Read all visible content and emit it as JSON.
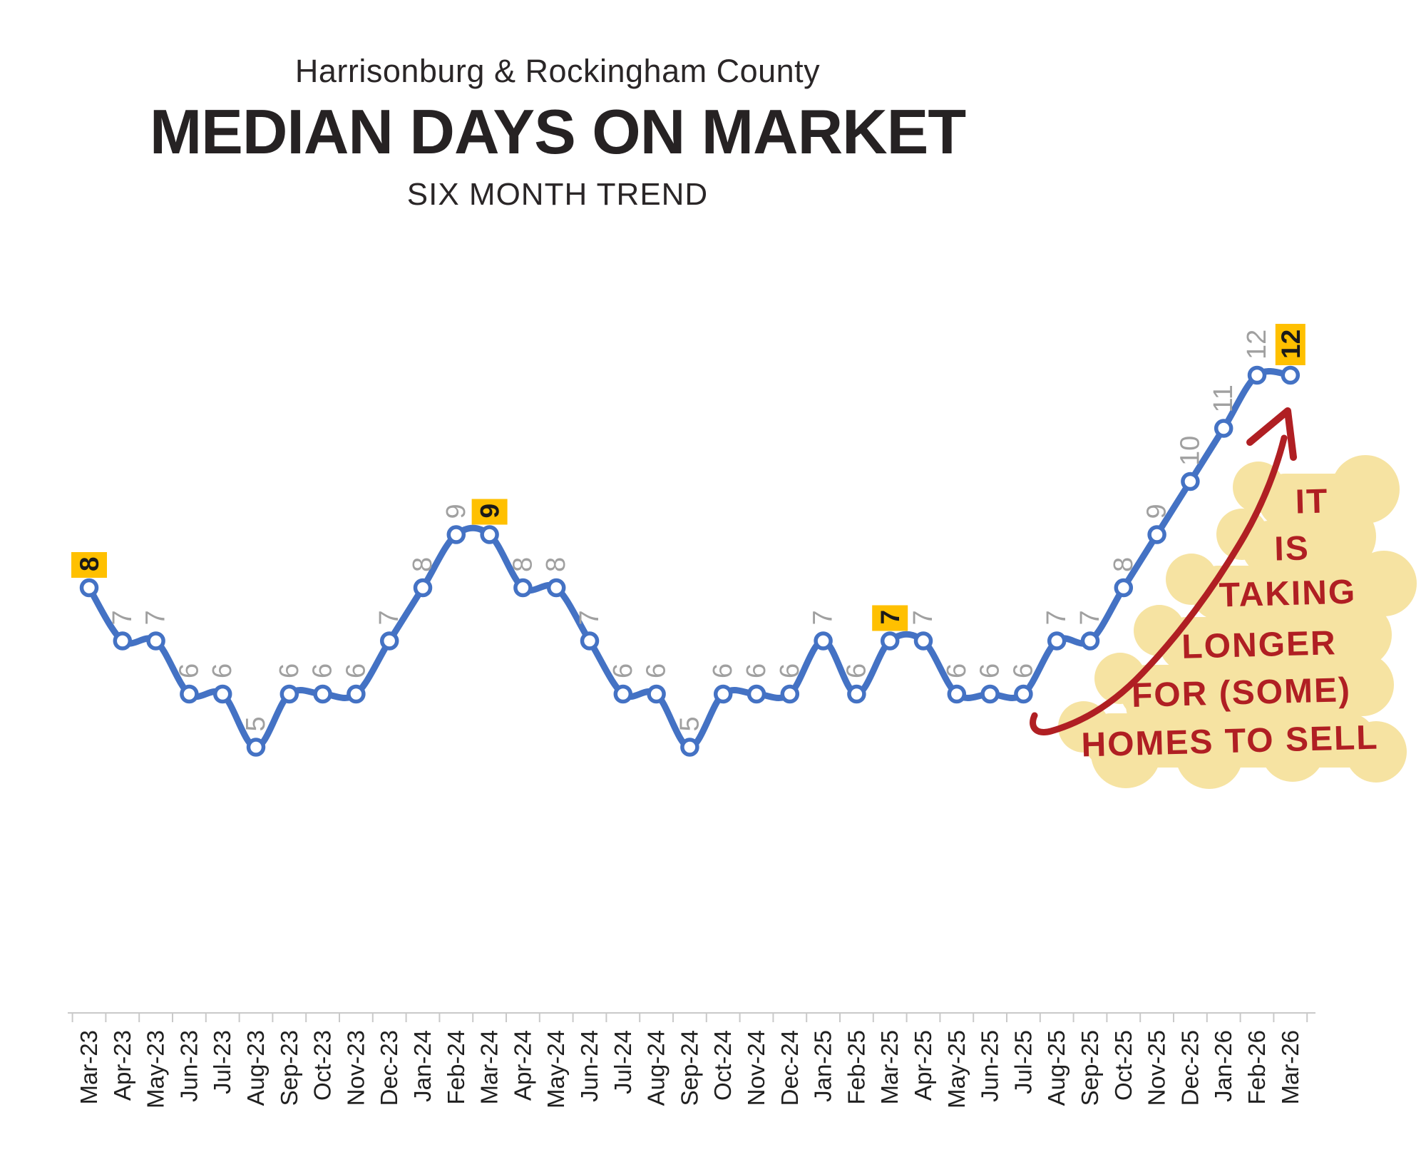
{
  "title": {
    "supertitle": "Harrisonburg & Rockingham County",
    "main": "MEDIAN DAYS ON MARKET",
    "trend": "SIX MONTH TREND"
  },
  "chart_data": {
    "type": "line",
    "title": "MEDIAN DAYS ON MARKET",
    "subtitle": "Harrisonburg & Rockingham County",
    "trend_label": "SIX MONTH TREND",
    "categories": [
      "Mar-23",
      "Apr-23",
      "May-23",
      "Jun-23",
      "Jul-23",
      "Aug-23",
      "Sep-23",
      "Oct-23",
      "Nov-23",
      "Dec-23",
      "Jan-24",
      "Feb-24",
      "Mar-24",
      "Apr-24",
      "May-24",
      "Jun-24",
      "Jul-24",
      "Aug-24",
      "Sep-24",
      "Oct-24",
      "Nov-24",
      "Dec-24",
      "Jan-25",
      "Feb-25",
      "Mar-25",
      "Apr-25",
      "May-25",
      "Jun-25",
      "Jul-25",
      "Aug-25",
      "Sep-25",
      "Oct-25",
      "Nov-25",
      "Dec-25",
      "Jan-26",
      "Feb-26",
      "Mar-26"
    ],
    "values": [
      8,
      7,
      7,
      6,
      6,
      5,
      6,
      6,
      6,
      7,
      8,
      9,
      9,
      8,
      8,
      7,
      6,
      6,
      5,
      6,
      6,
      6,
      7,
      6,
      7,
      7,
      6,
      6,
      6,
      7,
      7,
      8,
      9,
      10,
      11,
      12,
      12
    ],
    "highlighted_indices": [
      0,
      12,
      24,
      36
    ],
    "highlighted_values": [
      8,
      9,
      7,
      12
    ],
    "smoothed": true,
    "grid": false,
    "legend": false,
    "ylim": [
      0,
      13
    ],
    "xlabel": "",
    "ylabel": "",
    "line_color": "#4472C4",
    "marker_fill": "#ffffff",
    "data_label_color": "#A0A0A0",
    "highlight_label_bg": "#FFC000",
    "highlight_label_color": "#1a1a1a",
    "axis_color": "#c9c9c9",
    "tick_label_color": "#1f1f1f"
  },
  "annotation": {
    "lines": [
      "IT",
      "IS",
      "TAKING",
      "LONGER",
      "FOR (SOME)",
      "HOMES TO SELL"
    ],
    "text_color": "#B01F23",
    "highlight_color": "#F6E3A2",
    "arrow_color": "#B01F23"
  }
}
